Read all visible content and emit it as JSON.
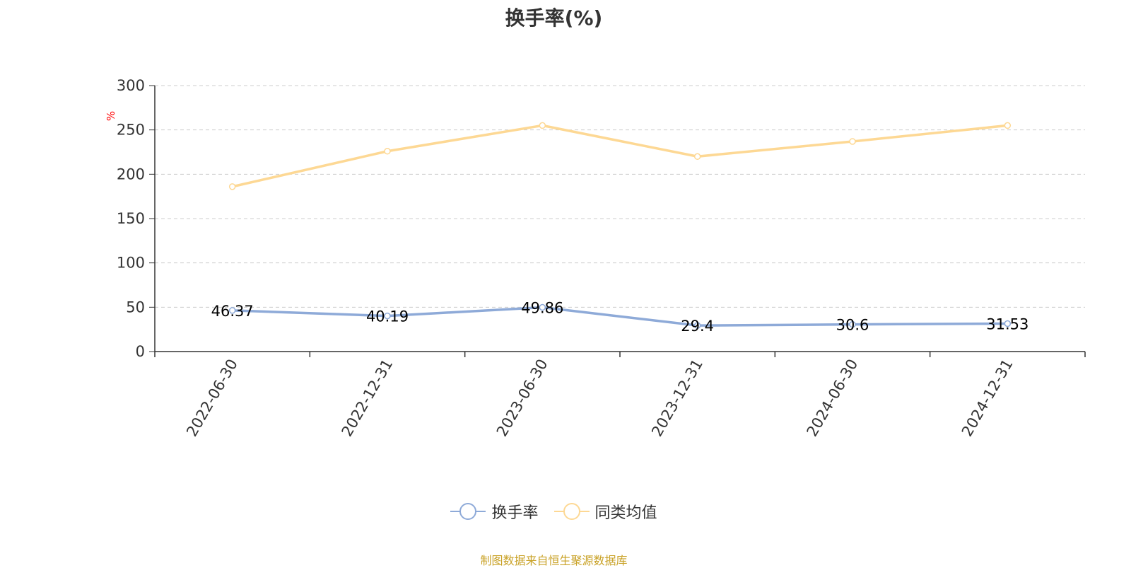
{
  "chart_data": {
    "type": "line",
    "title": "换手率(%)",
    "ylabel": "%",
    "xlabel": "",
    "ylim": [
      0,
      300
    ],
    "yticks": [
      0,
      50,
      100,
      150,
      200,
      250,
      300
    ],
    "grid": true,
    "legend_position": "bottom",
    "categories": [
      "2022-06-30",
      "2022-12-31",
      "2023-06-30",
      "2023-12-31",
      "2024-06-30",
      "2024-12-31"
    ],
    "series": [
      {
        "name": "换手率",
        "color": "#8eaad8",
        "values": [
          46.37,
          40.19,
          49.86,
          29.4,
          30.6,
          31.53
        ],
        "show_labels": true
      },
      {
        "name": "同类均值",
        "color": "#fdd894",
        "values": [
          186,
          226,
          255,
          220,
          237,
          255
        ],
        "show_labels": false
      }
    ]
  },
  "footer": {
    "source_text": "制图数据来自恒生聚源数据库",
    "source_color": "#c9a227"
  },
  "colors": {
    "axis": "#333333",
    "grid": "#cccccc",
    "ylabel": "#ff0000"
  }
}
